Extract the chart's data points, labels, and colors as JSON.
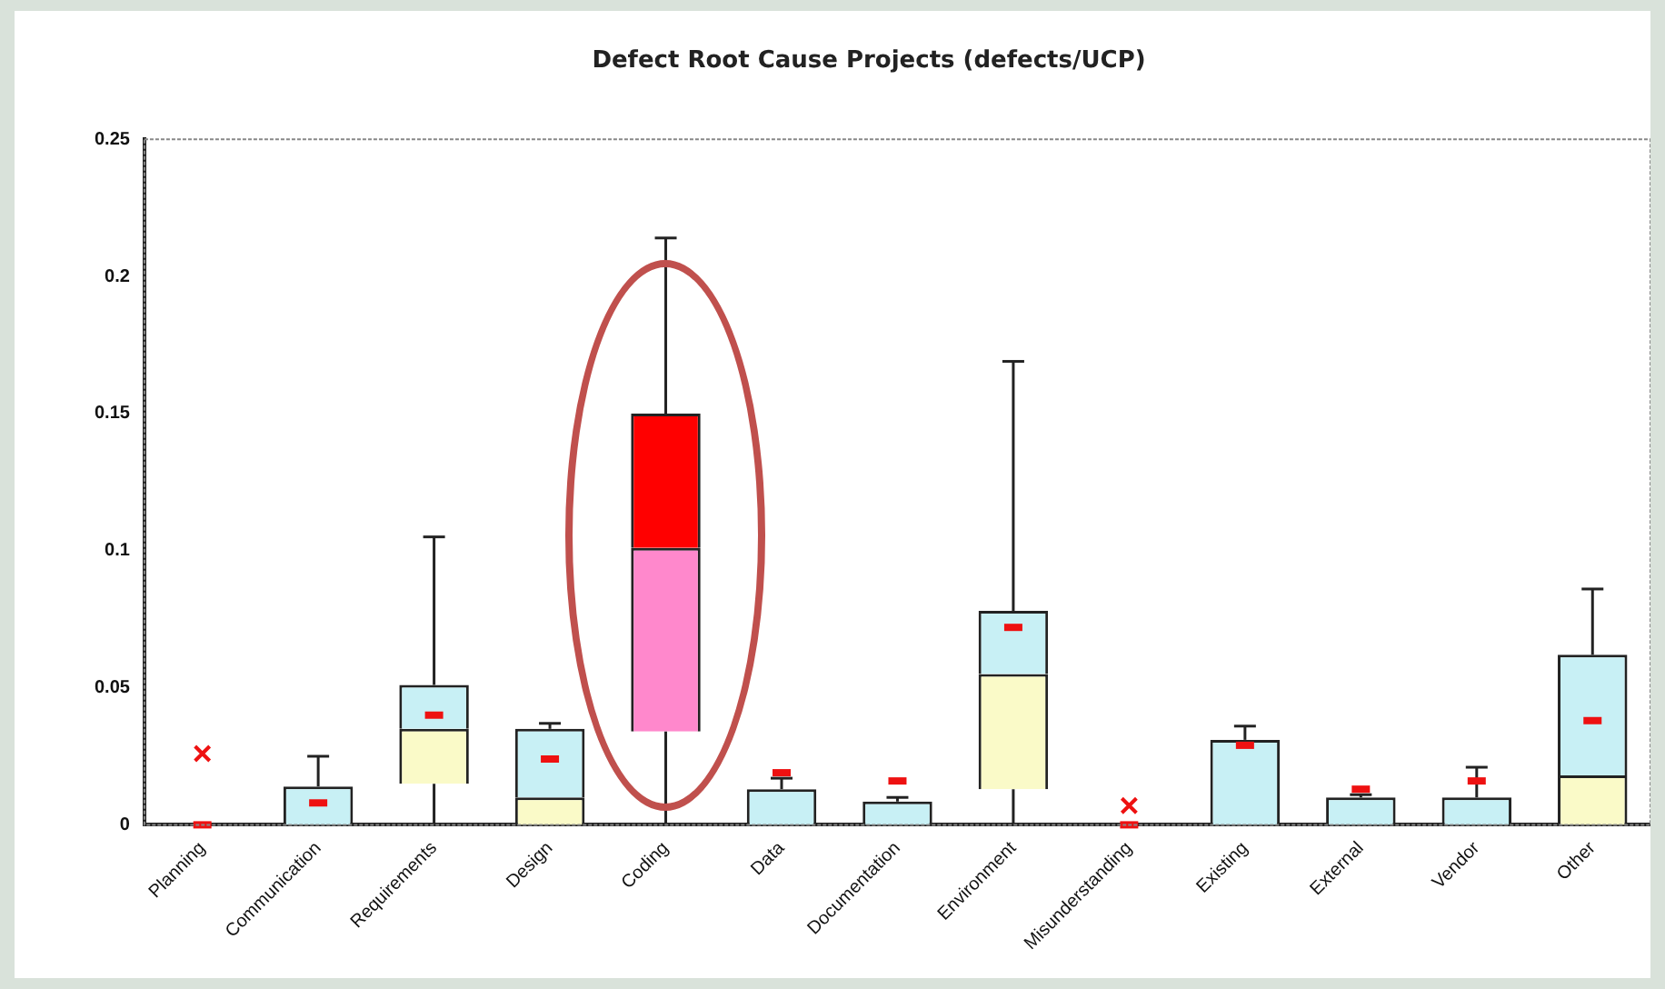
{
  "chart_data": {
    "type": "box",
    "title": "Defect Root Cause Projects (defects/UCP)",
    "categories": [
      "Planning",
      "Communication",
      "Requirements",
      "Design",
      "Coding",
      "Data",
      "Documentation",
      "Environment",
      "Misunderstanding",
      "Existing",
      "External",
      "Vendor",
      "Other"
    ],
    "boxes": [
      {
        "low": 0,
        "q1": 0,
        "median": 0,
        "q3": 0,
        "high": 0,
        "mean": 0,
        "outliers": [
          0.026
        ]
      },
      {
        "low": 0,
        "q1": 0,
        "median": 0,
        "q3": 0.014,
        "high": 0.025,
        "mean": 0.008
      },
      {
        "low": 0,
        "q1": 0.015,
        "median": 0.035,
        "q3": 0.051,
        "high": 0.105,
        "mean": 0.04
      },
      {
        "low": 0,
        "q1": 0,
        "median": 0.01,
        "q3": 0.035,
        "high": 0.037,
        "mean": 0.024
      },
      {
        "low": 0,
        "q1": 0.034,
        "median": 0.101,
        "q3": 0.15,
        "high": 0.214
      },
      {
        "low": 0,
        "q1": 0,
        "median": 0,
        "q3": 0.013,
        "high": 0.017,
        "mean": 0.019
      },
      {
        "low": 0,
        "q1": 0,
        "median": 0,
        "q3": 0.0085,
        "high": 0.01,
        "mean": 0.016
      },
      {
        "low": 0,
        "q1": 0.013,
        "median": 0.055,
        "q3": 0.078,
        "high": 0.169,
        "mean": 0.072
      },
      {
        "low": 0,
        "q1": 0,
        "median": 0,
        "q3": 0,
        "high": 0,
        "mean": 0,
        "outliers": [
          0.007
        ]
      },
      {
        "low": 0,
        "q1": 0,
        "median": 0,
        "q3": 0.031,
        "high": 0.036,
        "mean": 0.029
      },
      {
        "low": 0,
        "q1": 0,
        "median": 0,
        "q3": 0.01,
        "high": 0.011,
        "mean": 0.013
      },
      {
        "low": 0,
        "q1": 0,
        "median": 0,
        "q3": 0.01,
        "high": 0.021,
        "mean": 0.016
      },
      {
        "low": 0,
        "q1": 0,
        "median": 0.018,
        "q3": 0.062,
        "high": 0.086,
        "mean": 0.038
      }
    ],
    "colors": [
      [
        "#c8f0f5",
        "#fafac8"
      ],
      [
        "#c8f0f5",
        "#fafac8"
      ],
      [
        "#c8f0f5",
        "#fafac8"
      ],
      [
        "#c8f0f5",
        "#fafac8"
      ],
      [
        "#ff0000",
        "#ff88cc"
      ],
      [
        "#c8f0f5",
        "#fafac8"
      ],
      [
        "#c8f0f5",
        "#fafac8"
      ],
      [
        "#c8f0f5",
        "#fafac8"
      ],
      [
        "#c8f0f5",
        "#fafac8"
      ],
      [
        "#c8f0f5",
        "#fafac8"
      ],
      [
        "#c8f0f5",
        "#fafac8"
      ],
      [
        "#c8f0f5",
        "#fafac8"
      ],
      [
        "#c8f0f5",
        "#fafac8"
      ]
    ],
    "ylim": [
      0,
      0.25
    ],
    "yticks": [
      0,
      0.05,
      0.1,
      0.15,
      0.2,
      0.25
    ],
    "grid": false,
    "legend": false,
    "marker": "cross"
  }
}
